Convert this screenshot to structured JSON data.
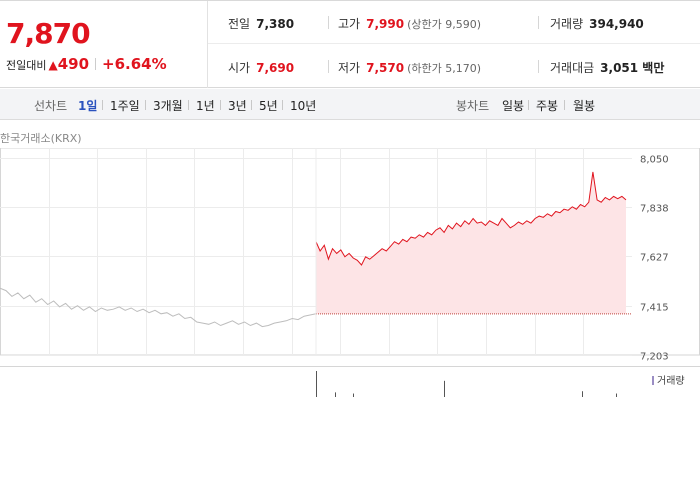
{
  "quote": {
    "current_price": "7,870",
    "change_label": "전일대비",
    "change_arrow": "▲",
    "change_value": "490",
    "change_percent": "+6.64%"
  },
  "stats": {
    "prev_label": "전일",
    "prev_value": "7,380",
    "high_label": "고가",
    "high_value": "7,990",
    "high_sub": "(상한가 9,590)",
    "volume_label": "거래량",
    "volume_value": "394,940",
    "open_label": "시가",
    "open_value": "7,690",
    "low_label": "저가",
    "low_value": "7,570",
    "low_sub": "(하한가 5,170)",
    "amount_label": "거래대금",
    "amount_value": "3,051 백만"
  },
  "tabs": {
    "line_label": "선차트",
    "line_items": [
      "1일",
      "1주일",
      "3개월",
      "1년",
      "3년",
      "5년",
      "10년"
    ],
    "line_active": 0,
    "candle_label": "봉차트",
    "candle_items": [
      "일봉",
      "주봉",
      "월봉"
    ]
  },
  "source_label": "한국거래소(KRX)",
  "colors": {
    "up": "#e0141e",
    "prev": "#bdbdbd",
    "fill": "#fde4e6",
    "volume": "#9b8ec4"
  },
  "chart_data": {
    "type": "line",
    "title": "",
    "ylim": [
      7203,
      8050
    ],
    "yticks": [
      "8,050",
      "7,838",
      "7,627",
      "7,415",
      "7,203"
    ],
    "ytick_values": [
      8050,
      7838,
      7627,
      7415,
      7203
    ],
    "baseline": 7380,
    "grid": true,
    "series": [
      {
        "values": [
          7490,
          7480,
          7455,
          7470,
          7445,
          7460,
          7430,
          7445,
          7420,
          7435,
          7410,
          7425,
          7400,
          7415,
          7395,
          7410,
          7390,
          7405,
          7395,
          7400,
          7410,
          7395,
          7405,
          7390,
          7400,
          7385,
          7395,
          7380,
          7385,
          7370,
          7380,
          7360,
          7365,
          7345,
          7340,
          7335,
          7345,
          7330,
          7340,
          7350,
          7335,
          7345,
          7330,
          7340,
          7325,
          7330,
          7340,
          7345,
          7350,
          7360,
          7355,
          7370,
          7375,
          7380
        ]
      },
      {
        "values": [
          7690,
          7650,
          7675,
          7615,
          7660,
          7640,
          7655,
          7625,
          7640,
          7620,
          7610,
          7590,
          7625,
          7615,
          7630,
          7645,
          7660,
          7650,
          7670,
          7690,
          7680,
          7700,
          7690,
          7710,
          7705,
          7720,
          7710,
          7730,
          7720,
          7740,
          7750,
          7730,
          7760,
          7745,
          7770,
          7755,
          7780,
          7765,
          7790,
          7770,
          7775,
          7760,
          7780,
          7770,
          7760,
          7790,
          7770,
          7750,
          7760,
          7775,
          7765,
          7780,
          7770,
          7790,
          7800,
          7795,
          7810,
          7800,
          7820,
          7815,
          7830,
          7825,
          7840,
          7830,
          7850,
          7840,
          7860,
          7990,
          7870,
          7860,
          7880,
          7870,
          7885,
          7875,
          7885,
          7870
        ]
      }
    ],
    "volume_label": "거래량",
    "volume": [
      45,
      8,
      6,
      28,
      10,
      6
    ]
  }
}
